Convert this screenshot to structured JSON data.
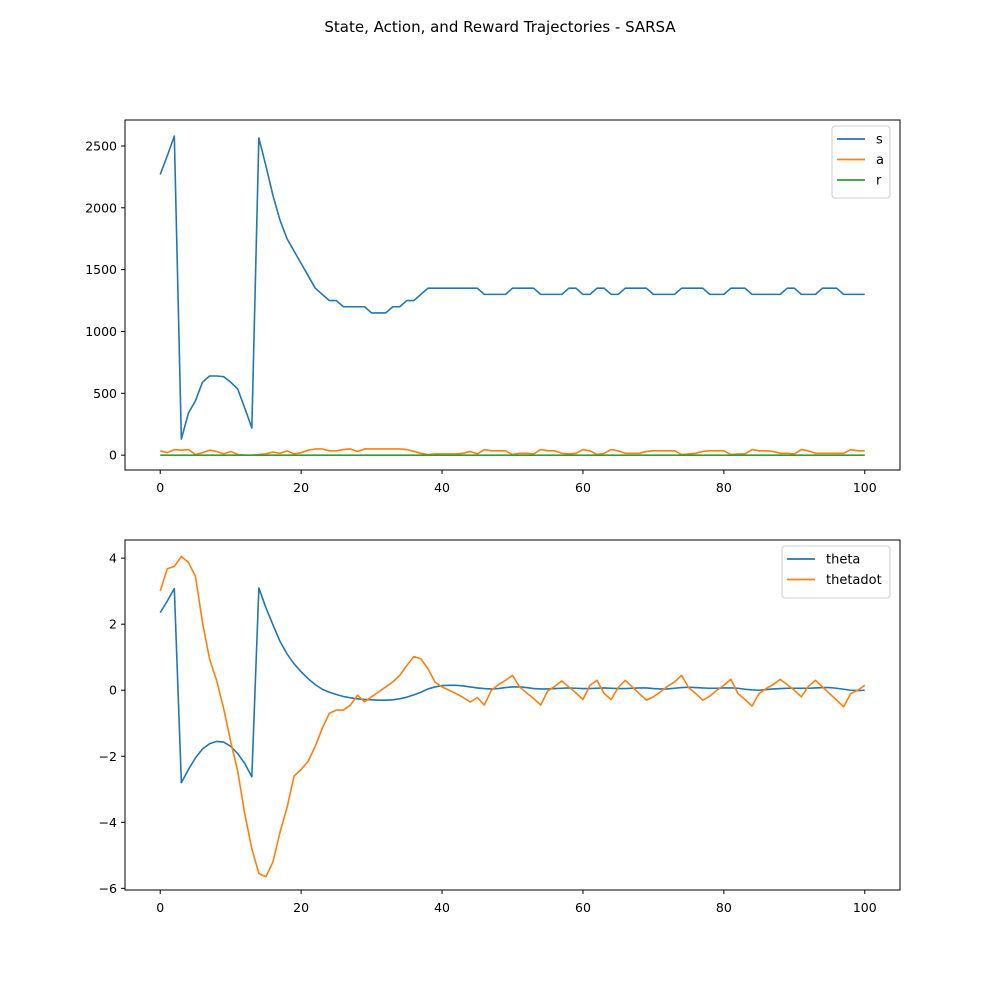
{
  "figure_title": "State, Action, and Reward Trajectories - SARSA",
  "chart_data": [
    {
      "type": "line",
      "xlim": [
        -5,
        105
      ],
      "ylim": [
        -120,
        2710
      ],
      "xticks": [
        0,
        20,
        40,
        60,
        80,
        100
      ],
      "yticks": [
        0,
        500,
        1000,
        1500,
        2000,
        2500
      ],
      "legend_position": "top-right",
      "grid": false,
      "series": [
        {
          "name": "s",
          "color": "#1f77b4",
          "x_start": 0,
          "values": [
            2270,
            2420,
            2580,
            130,
            340,
            440,
            590,
            640,
            640,
            635,
            590,
            535,
            380,
            220,
            2565,
            2340,
            2100,
            1900,
            1750,
            1650,
            1550,
            1450,
            1350,
            1300,
            1250,
            1250,
            1200,
            1200,
            1200,
            1200,
            1150,
            1150,
            1150,
            1200,
            1200,
            1250,
            1250,
            1300,
            1350,
            1350,
            1350,
            1350,
            1350,
            1350,
            1350,
            1350,
            1300,
            1300,
            1300,
            1300,
            1350,
            1350,
            1350,
            1350,
            1300,
            1300,
            1300,
            1300,
            1350,
            1350,
            1300,
            1300,
            1350,
            1350,
            1300,
            1300,
            1350,
            1350,
            1350,
            1350,
            1300,
            1300,
            1300,
            1300,
            1350,
            1350,
            1350,
            1350,
            1300,
            1300,
            1300,
            1350,
            1350,
            1350,
            1300,
            1300,
            1300,
            1300,
            1300,
            1350,
            1350,
            1300,
            1300,
            1300,
            1350,
            1350,
            1350,
            1300,
            1300,
            1300,
            1300
          ]
        },
        {
          "name": "a",
          "color": "#ff7f0e",
          "x_start": 0,
          "values": [
            35,
            20,
            45,
            40,
            45,
            5,
            20,
            40,
            30,
            10,
            30,
            5,
            0,
            0,
            5,
            10,
            25,
            15,
            35,
            10,
            20,
            40,
            50,
            50,
            35,
            35,
            45,
            50,
            30,
            50,
            50,
            50,
            50,
            50,
            50,
            45,
            30,
            15,
            5,
            10,
            10,
            10,
            10,
            15,
            30,
            10,
            45,
            35,
            35,
            35,
            5,
            15,
            15,
            10,
            45,
            35,
            35,
            15,
            10,
            15,
            45,
            35,
            5,
            15,
            45,
            35,
            15,
            15,
            15,
            30,
            35,
            35,
            35,
            35,
            5,
            10,
            15,
            30,
            35,
            35,
            35,
            5,
            10,
            10,
            45,
            35,
            35,
            30,
            15,
            15,
            10,
            45,
            35,
            15,
            15,
            15,
            15,
            15,
            45,
            35,
            35
          ]
        },
        {
          "name": "r",
          "color": "#2ca02c",
          "x_start": 0,
          "values": [
            0,
            0,
            0,
            0,
            0,
            0,
            0,
            0,
            0,
            0,
            0,
            0,
            0,
            0,
            0,
            0,
            0,
            0,
            0,
            0,
            0,
            0,
            0,
            0,
            0,
            0,
            0,
            0,
            0,
            0,
            0,
            0,
            0,
            0,
            0,
            0,
            0,
            0,
            0,
            0,
            0,
            0,
            0,
            0,
            0,
            0,
            0,
            0,
            0,
            0,
            0,
            0,
            0,
            0,
            0,
            0,
            0,
            0,
            0,
            0,
            0,
            0,
            0,
            0,
            0,
            0,
            0,
            0,
            0,
            0,
            0,
            0,
            0,
            0,
            0,
            0,
            0,
            0,
            0,
            0,
            0,
            0,
            0,
            0,
            0,
            0,
            0,
            0,
            0,
            0,
            0,
            0,
            0,
            0,
            0,
            0,
            0,
            0,
            0,
            0,
            0
          ]
        }
      ]
    },
    {
      "type": "line",
      "xlim": [
        -5,
        105
      ],
      "ylim": [
        -6.05,
        4.55
      ],
      "xticks": [
        0,
        20,
        40,
        60,
        80,
        100
      ],
      "yticks": [
        -6,
        -4,
        -2,
        0,
        2,
        4
      ],
      "legend_position": "top-right",
      "grid": false,
      "series": [
        {
          "name": "theta",
          "color": "#1f77b4",
          "x_start": 0,
          "values": [
            2.35,
            2.7,
            3.08,
            -2.8,
            -2.4,
            -2.05,
            -1.78,
            -1.62,
            -1.55,
            -1.57,
            -1.7,
            -1.92,
            -2.22,
            -2.62,
            3.1,
            2.5,
            1.98,
            1.48,
            1.1,
            0.8,
            0.56,
            0.35,
            0.17,
            0.03,
            -0.06,
            -0.13,
            -0.19,
            -0.23,
            -0.26,
            -0.28,
            -0.29,
            -0.3,
            -0.3,
            -0.29,
            -0.26,
            -0.21,
            -0.14,
            -0.06,
            0.04,
            0.1,
            0.14,
            0.15,
            0.15,
            0.13,
            0.1,
            0.07,
            0.05,
            0.04,
            0.05,
            0.08,
            0.1,
            0.1,
            0.08,
            0.05,
            0.04,
            0.04,
            0.05,
            0.06,
            0.07,
            0.06,
            0.05,
            0.05,
            0.06,
            0.07,
            0.06,
            0.05,
            0.05,
            0.06,
            0.07,
            0.07,
            0.05,
            0.04,
            0.04,
            0.06,
            0.08,
            0.09,
            0.08,
            0.07,
            0.06,
            0.06,
            0.07,
            0.07,
            0.06,
            0.03,
            0.01,
            0.0,
            0.02,
            0.04,
            0.05,
            0.06,
            0.06,
            0.06,
            0.06,
            0.07,
            0.08,
            0.08,
            0.06,
            0.03,
            0.0,
            -0.01,
            0.0
          ]
        },
        {
          "name": "thetadot",
          "color": "#ff7f0e",
          "x_start": 0,
          "values": [
            3.0,
            3.68,
            3.75,
            4.05,
            3.87,
            3.45,
            2.05,
            0.95,
            0.3,
            -0.55,
            -1.55,
            -2.45,
            -3.75,
            -4.8,
            -5.55,
            -5.65,
            -5.2,
            -4.3,
            -3.55,
            -2.6,
            -2.4,
            -2.15,
            -1.7,
            -1.15,
            -0.7,
            -0.6,
            -0.6,
            -0.45,
            -0.15,
            -0.35,
            -0.2,
            -0.05,
            0.1,
            0.25,
            0.45,
            0.75,
            1.02,
            0.95,
            0.65,
            0.25,
            0.1,
            0.0,
            -0.1,
            -0.22,
            -0.36,
            -0.22,
            -0.45,
            0.0,
            0.17,
            0.3,
            0.45,
            0.1,
            -0.08,
            -0.25,
            -0.45,
            -0.02,
            0.12,
            0.28,
            0.1,
            -0.08,
            -0.28,
            0.15,
            0.3,
            -0.1,
            -0.28,
            0.08,
            0.3,
            0.1,
            -0.1,
            -0.3,
            -0.2,
            -0.05,
            0.12,
            0.25,
            0.45,
            0.08,
            -0.1,
            -0.3,
            -0.18,
            0.0,
            0.15,
            0.33,
            -0.1,
            -0.28,
            -0.48,
            -0.1,
            0.05,
            0.17,
            0.33,
            0.17,
            0.0,
            -0.2,
            0.12,
            0.3,
            0.1,
            -0.1,
            -0.3,
            -0.5,
            -0.1,
            0.0,
            0.15
          ]
        }
      ]
    }
  ]
}
